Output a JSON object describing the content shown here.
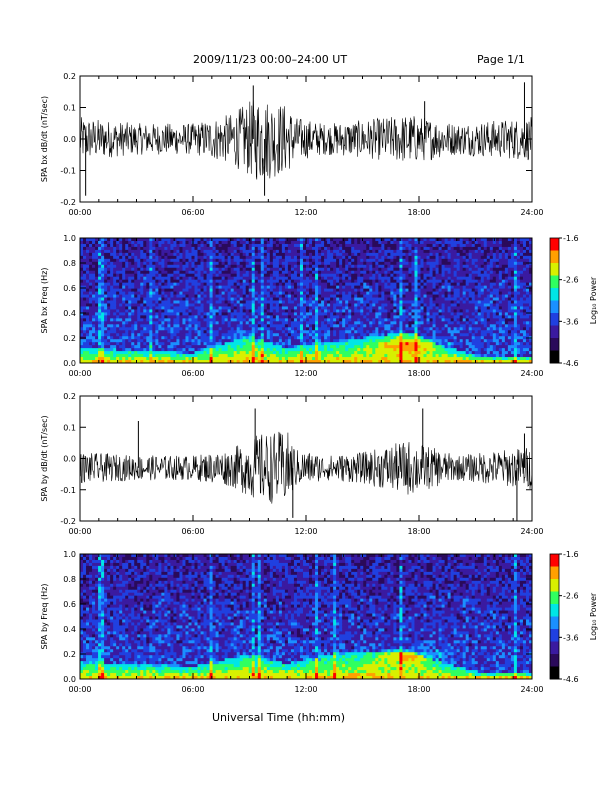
{
  "header": {
    "title": "2009/11/23  00:00–24:00 UT",
    "page": "Page 1/1"
  },
  "x_axis_title": "Universal Time (hh:mm)",
  "colors": {
    "trace": "#000000",
    "spectrogram_palette": [
      "#000000",
      "#2a0a5a",
      "#3a1aa0",
      "#2040e0",
      "#1a90ff",
      "#00e6e6",
      "#30ff60",
      "#d8f000",
      "#ffa000",
      "#ff0000"
    ]
  },
  "chart_data": [
    {
      "type": "line",
      "ylabel": "SPA bx dB/dt (nT/sec)",
      "xlim_hours": [
        0,
        24
      ],
      "ylim": [
        -0.2,
        0.2
      ],
      "xticks": [
        "00:00",
        "06:00",
        "12:00",
        "18:00",
        "24:00"
      ],
      "yticks": [
        "0.2",
        "0.1",
        "0.0",
        "-0.1",
        "-0.2"
      ],
      "ytick_values": [
        0.2,
        0.1,
        0.0,
        -0.1,
        -0.2
      ],
      "baseline": 0.0,
      "activity": [
        {
          "t": 0,
          "amp": 0.07
        },
        {
          "t": 3,
          "amp": 0.05
        },
        {
          "t": 6,
          "amp": 0.05
        },
        {
          "t": 8,
          "amp": 0.08
        },
        {
          "t": 9.5,
          "amp": 0.14
        },
        {
          "t": 11,
          "amp": 0.11
        },
        {
          "t": 11.5,
          "amp": 0.07
        },
        {
          "t": 13,
          "amp": 0.05
        },
        {
          "t": 15,
          "amp": 0.06
        },
        {
          "t": 17.5,
          "amp": 0.08
        },
        {
          "t": 20,
          "amp": 0.05
        },
        {
          "t": 24,
          "amp": 0.07
        }
      ],
      "spikes": [
        {
          "t": 0.3,
          "v": -0.18
        },
        {
          "t": 9.2,
          "v": 0.17
        },
        {
          "t": 9.8,
          "v": -0.18
        },
        {
          "t": 18.3,
          "v": 0.12
        },
        {
          "t": 23.6,
          "v": 0.18
        }
      ]
    },
    {
      "type": "heatmap",
      "ylabel": "SPA bx Freq (Hz)",
      "xlim_hours": [
        0,
        24
      ],
      "ylim": [
        0.0,
        1.0
      ],
      "xticks": [
        "00:00",
        "06:00",
        "12:00",
        "18:00",
        "24:00"
      ],
      "yticks": [
        "1.0",
        "0.8",
        "0.6",
        "0.4",
        "0.2",
        "0.0"
      ],
      "ytick_values": [
        1.0,
        0.8,
        0.6,
        0.4,
        0.2,
        0.0
      ],
      "colorbar": {
        "label": "Log₁₀ Power",
        "ticks": [
          "-1.6",
          "-2.6",
          "-3.6",
          "-4.6"
        ],
        "range": [
          -4.6,
          -1.6
        ]
      },
      "band": [
        {
          "t": 0,
          "top": 0.12
        },
        {
          "t": 6,
          "top": 0.08
        },
        {
          "t": 9,
          "top": 0.22
        },
        {
          "t": 11,
          "top": 0.12
        },
        {
          "t": 12,
          "top": 0.15
        },
        {
          "t": 14,
          "top": 0.18
        },
        {
          "t": 17.5,
          "top": 0.25
        },
        {
          "t": 19,
          "top": 0.15
        },
        {
          "t": 21,
          "top": 0.06
        },
        {
          "t": 24,
          "top": 0.05
        }
      ],
      "hot_spot": {
        "t": 17.5,
        "f": 0.15
      },
      "vertical_streaks_hours": [
        1.0,
        1.1,
        3.6,
        6.9,
        9.2,
        9.6,
        11.6,
        12.4,
        17.0,
        17.8,
        23.1
      ]
    },
    {
      "type": "line",
      "ylabel": "SPA by dB/dt (nT/sec)",
      "xlim_hours": [
        0,
        24
      ],
      "ylim": [
        -0.2,
        0.2
      ],
      "xticks": [
        "00:00",
        "06:00",
        "12:00",
        "18:00",
        "24:00"
      ],
      "yticks": [
        "0.2",
        "0.1",
        "0.0",
        "-0.1",
        "-0.2"
      ],
      "ytick_values": [
        0.2,
        0.1,
        0.0,
        -0.1,
        -0.2
      ],
      "baseline": -0.03,
      "activity": [
        {
          "t": 0,
          "amp": 0.05
        },
        {
          "t": 3,
          "amp": 0.04
        },
        {
          "t": 6,
          "amp": 0.04
        },
        {
          "t": 8,
          "amp": 0.06
        },
        {
          "t": 9.5,
          "amp": 0.11
        },
        {
          "t": 11,
          "amp": 0.12
        },
        {
          "t": 11.5,
          "amp": 0.06
        },
        {
          "t": 13,
          "amp": 0.04
        },
        {
          "t": 15,
          "amp": 0.05
        },
        {
          "t": 17.5,
          "amp": 0.09
        },
        {
          "t": 20,
          "amp": 0.04
        },
        {
          "t": 24,
          "amp": 0.07
        }
      ],
      "spikes": [
        {
          "t": 3.1,
          "v": 0.12
        },
        {
          "t": 9.3,
          "v": 0.16
        },
        {
          "t": 11.3,
          "v": -0.19
        },
        {
          "t": 18.2,
          "v": 0.16
        },
        {
          "t": 23.2,
          "v": -0.2
        },
        {
          "t": 23.6,
          "v": 0.08
        }
      ]
    },
    {
      "type": "heatmap",
      "ylabel": "SPA by Freq (Hz)",
      "xlim_hours": [
        0,
        24
      ],
      "ylim": [
        0.0,
        1.0
      ],
      "xticks": [
        "00:00",
        "06:00",
        "12:00",
        "18:00",
        "24:00"
      ],
      "yticks": [
        "1.0",
        "0.8",
        "0.6",
        "0.4",
        "0.2",
        "0.0"
      ],
      "ytick_values": [
        1.0,
        0.8,
        0.6,
        0.4,
        0.2,
        0.0
      ],
      "colorbar": {
        "label": "Log₁₀ Power",
        "ticks": [
          "-1.6",
          "-2.6",
          "-3.6",
          "-4.6"
        ],
        "range": [
          -4.6,
          -1.6
        ]
      },
      "band": [
        {
          "t": 0,
          "top": 0.14
        },
        {
          "t": 6,
          "top": 0.1
        },
        {
          "t": 9,
          "top": 0.2
        },
        {
          "t": 11,
          "top": 0.12
        },
        {
          "t": 12,
          "top": 0.16
        },
        {
          "t": 14,
          "top": 0.22
        },
        {
          "t": 17.5,
          "top": 0.22
        },
        {
          "t": 19,
          "top": 0.14
        },
        {
          "t": 21,
          "top": 0.06
        },
        {
          "t": 24,
          "top": 0.05
        }
      ],
      "hot_spot": {
        "t": 17.5,
        "f": 0.18
      },
      "vertical_streaks_hours": [
        1.0,
        1.1,
        6.9,
        9.2,
        9.5,
        12.4,
        13.5,
        17.0,
        23.1
      ]
    }
  ]
}
